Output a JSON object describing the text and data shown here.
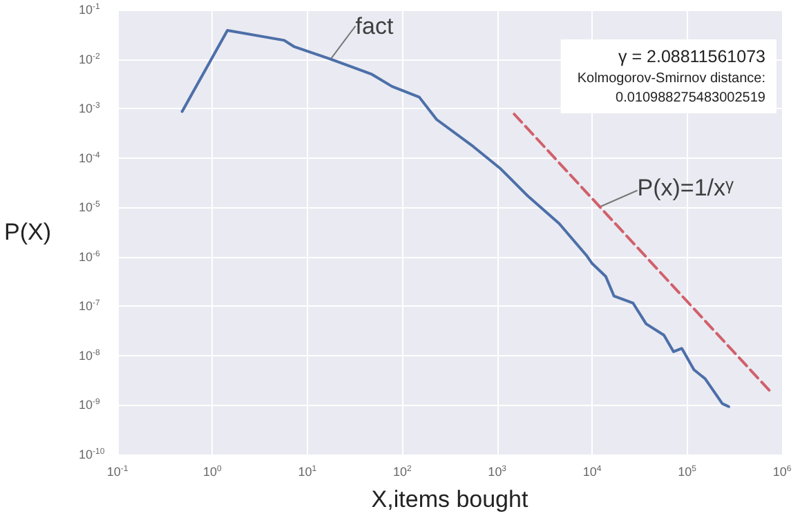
{
  "chart_data": {
    "type": "line",
    "xlabel": "X,items bought",
    "ylabel": "P(X)",
    "log": "xy",
    "grid": true,
    "marker": "none",
    "xlim": [
      0.1,
      1000000
    ],
    "xticks": [
      {
        "value": 0.1,
        "label": "10$^{-1}$"
      },
      {
        "value": 1,
        "label": "10$^{0}$"
      },
      {
        "value": 10,
        "label": "10$^{1}$"
      },
      {
        "value": 100,
        "label": "10$^{2}$"
      },
      {
        "value": 1000,
        "label": "10$^{3}$"
      },
      {
        "value": 10000,
        "label": "10$^{4}$"
      },
      {
        "value": 100000,
        "label": "10$^{5}$"
      },
      {
        "value": 1000000,
        "label": "10$^{6}$"
      }
    ],
    "ylim": [
      1e-10,
      0.1
    ],
    "yticks": [
      {
        "value": 1e-10,
        "label": "10$^{-10}$"
      },
      {
        "value": 1e-09,
        "label": "10$^{-9}$"
      },
      {
        "value": 1e-08,
        "label": "10$^{-8}$"
      },
      {
        "value": 1e-07,
        "label": "10$^{-7}$"
      },
      {
        "value": 1e-06,
        "label": "10$^{-6}$"
      },
      {
        "value": 1e-05,
        "label": "10$^{-5}$"
      },
      {
        "value": 0.0001,
        "label": "10$^{-4}$"
      },
      {
        "value": 0.001,
        "label": "10$^{-3}$"
      },
      {
        "value": 0.01,
        "label": "10$^{-2}$"
      },
      {
        "value": 0.1,
        "label": "10$^{-1}$"
      }
    ],
    "series": [
      {
        "color": "#4c6fa8",
        "line_style": "solid",
        "x": [
          0.48,
          1.44,
          5.7,
          7.2,
          17.6,
          48,
          78,
          151,
          230,
          560,
          1090,
          2100,
          4500,
          8700,
          10000,
          13900,
          17000,
          27000,
          37000,
          57000,
          72000,
          88000,
          118000,
          155000,
          235000,
          275000
        ],
        "values": [
          0.00087,
          0.038,
          0.024,
          0.018,
          0.01,
          0.0049,
          0.0028,
          0.0017,
          0.0006,
          0.00017,
          6e-05,
          1.7e-05,
          4.7e-06,
          1.07e-06,
          7.3e-07,
          4e-07,
          1.6e-07,
          1.15e-07,
          4.4e-08,
          2.6e-08,
          1.2e-08,
          1.4e-08,
          5.2e-09,
          3.4e-09,
          1.07e-09,
          9.3e-10
        ]
      },
      {
        "color": "#d0606a",
        "line_style": "dashed",
        "x": [
          1510,
          790000
        ],
        "values": [
          0.00077,
          1.7e-09
        ]
      }
    ],
    "annotations": [
      {
        "text": "fact",
        "x": 17.6,
        "y": 0.01
      },
      {
        "text": "P(x)=1/x$^{γ}$",
        "x": 11700,
        "y": 1e-05
      },
      "γ = 2.08811561073",
      "Kolmogorov-Smirnov distance:",
      "0.010988275483002519"
    ]
  }
}
